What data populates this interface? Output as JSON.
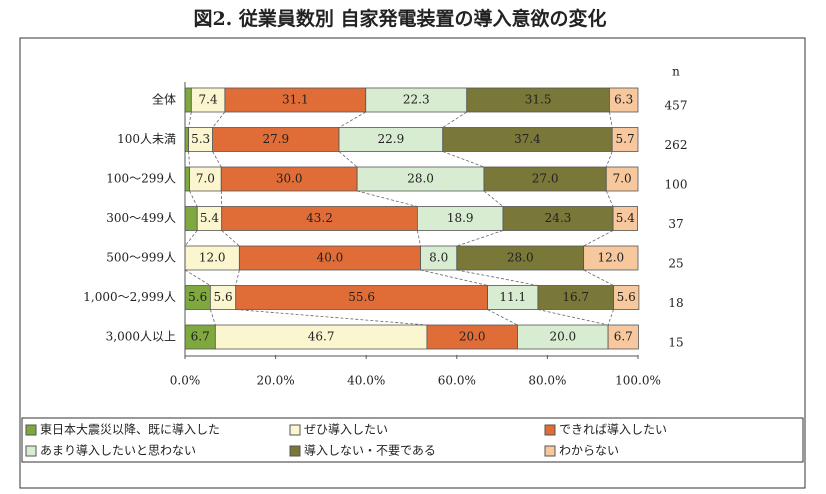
{
  "chart_data": {
    "type": "stacked-barh",
    "title": "図2. 従業員数別 自家発電装置の導入意欲の変化",
    "categories": [
      "全体",
      "100人未満",
      "100～299人",
      "300～499人",
      "500～999人",
      "1,000～2,999人",
      "3,000人以上"
    ],
    "n_label": "n",
    "n": [
      457,
      262,
      100,
      37,
      25,
      18,
      15
    ],
    "series": [
      {
        "name": "東日本大震災以降、既に導入した",
        "color": "#7fa83f",
        "values": [
          1.4,
          0.8,
          1.0,
          2.7,
          0,
          5.6,
          6.7
        ],
        "value_labels": [
          null,
          null,
          null,
          null,
          null,
          "5.6",
          "6.7"
        ]
      },
      {
        "name": "ぜひ導入したい",
        "color": "#fcf6d0",
        "values": [
          7.4,
          5.3,
          7.0,
          5.4,
          12.0,
          5.6,
          46.7
        ],
        "value_labels": [
          "7.4",
          "5.3",
          "7.0",
          "5.4",
          "12.0",
          "5.6",
          "46.7"
        ]
      },
      {
        "name": "できれば導入したい",
        "color": "#e06d38",
        "values": [
          31.1,
          27.9,
          30.0,
          43.2,
          40.0,
          55.6,
          20.0
        ],
        "value_labels": [
          "31.1",
          "27.9",
          "30.0",
          "43.2",
          "40.0",
          "55.6",
          "20.0"
        ]
      },
      {
        "name": "あまり導入したいと思わない",
        "color": "#d8ecd2",
        "values": [
          22.3,
          22.9,
          28.0,
          18.9,
          8.0,
          11.1,
          20.0
        ],
        "value_labels": [
          "22.3",
          "22.9",
          "28.0",
          "18.9",
          "8.0",
          "11.1",
          "20.0"
        ]
      },
      {
        "name": "導入しない・不要である",
        "color": "#7a7838",
        "values": [
          31.5,
          37.4,
          27.0,
          24.3,
          28.0,
          16.7,
          0
        ],
        "value_labels": [
          "31.5",
          "37.4",
          "27.0",
          "24.3",
          "28.0",
          "16.7",
          null
        ]
      },
      {
        "name": "わからない",
        "color": "#f7c89d",
        "values": [
          6.3,
          5.7,
          7.0,
          5.4,
          12.0,
          5.6,
          6.7
        ],
        "value_labels": [
          "6.3",
          "5.7",
          "7.0",
          "5.4",
          "12.0",
          "5.6",
          "6.7"
        ]
      }
    ],
    "xlim": [
      0,
      100
    ],
    "xticks": [
      {
        "value": 0,
        "label": "0.0%"
      },
      {
        "value": 20,
        "label": "20.0%"
      },
      {
        "value": 40,
        "label": "40.0%"
      },
      {
        "value": 60,
        "label": "60.0%"
      },
      {
        "value": 80,
        "label": "80.0%"
      },
      {
        "value": 100,
        "label": "100.0%"
      }
    ]
  }
}
